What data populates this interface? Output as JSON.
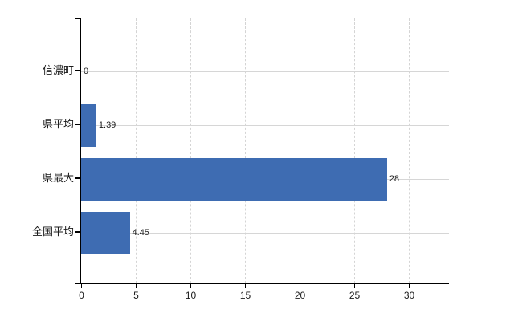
{
  "chart_data": {
    "type": "bar",
    "orientation": "horizontal",
    "title": "",
    "xlabel": "",
    "ylabel": "",
    "categories": [
      "信濃町",
      "県平均",
      "県最大",
      "全国平均"
    ],
    "values": [
      0,
      1.39,
      28,
      4.45
    ],
    "value_labels": [
      "0",
      "1.39",
      "28",
      "4.45"
    ],
    "xticks": [
      0,
      5,
      10,
      15,
      20,
      25,
      30
    ],
    "xlim": [
      0,
      33.7
    ],
    "grid": true,
    "legend": false,
    "bar_color": "#3e6cb2",
    "axis_color": "#000000",
    "vgrid_color": "#d4d4d4",
    "hgrid_color": "#d6d6d6",
    "text_color": "#1a1a1a"
  }
}
